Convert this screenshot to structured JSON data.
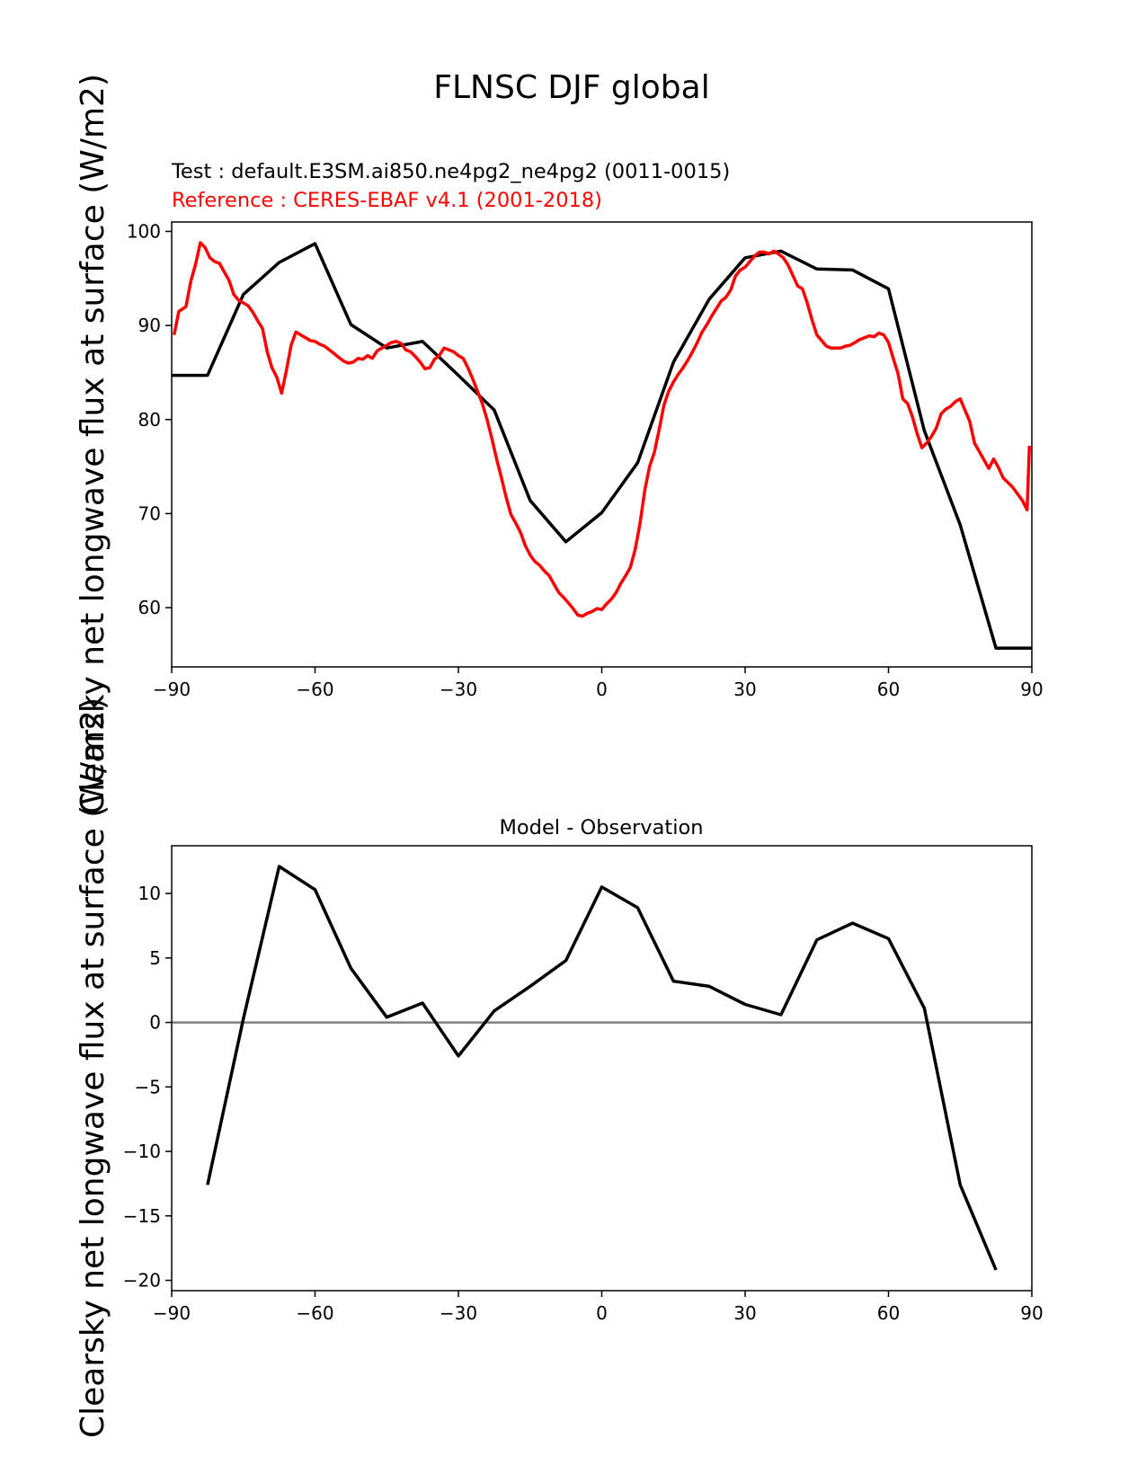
{
  "figure": {
    "title": "FLNSC DJF global",
    "test_label": "Test : default.E3SM.ai850.ne4pg2_ne4pg2 (0011-0015)",
    "reference_label": "Reference : CERES-EBAF v4.1 (2001-2018)",
    "ylabel_top": "Clearsky net longwave flux at surface (W/m2)",
    "ylabel_bottom": "Clearsky net longwave flux at surface (W/m2)"
  },
  "colors": {
    "test": "#000000",
    "reference": "#ff0000",
    "zero_line": "#808080"
  },
  "chart_data": [
    {
      "type": "line",
      "id": "top",
      "title": "",
      "xlim": [
        -90,
        90
      ],
      "ylim": [
        53.7,
        101
      ],
      "xticks": [
        -90,
        -60,
        -30,
        0,
        30,
        60,
        90
      ],
      "xtick_labels": [
        "−90",
        "−60",
        "−30",
        "0",
        "30",
        "60",
        "90"
      ],
      "yticks": [
        60,
        70,
        80,
        90,
        100
      ],
      "ytick_labels": [
        "60",
        "70",
        "80",
        "90",
        "100"
      ],
      "series": [
        {
          "name": "Test",
          "color": "#000000",
          "x": [
            -90,
            -82.5,
            -75,
            -67.5,
            -60,
            -52.5,
            -45,
            -37.5,
            -30,
            -22.5,
            -15,
            -7.5,
            0,
            7.5,
            15,
            22.5,
            30,
            37.5,
            45,
            52.5,
            60,
            67.5,
            75,
            82.5,
            90
          ],
          "y": [
            84.7,
            84.7,
            93.3,
            96.7,
            98.7,
            90.1,
            87.6,
            88.3,
            84.7,
            81.0,
            71.4,
            67.0,
            70.1,
            75.4,
            86.1,
            92.8,
            97.2,
            97.9,
            96.0,
            95.9,
            93.9,
            78.8,
            68.8,
            55.7,
            55.7
          ]
        },
        {
          "name": "Reference",
          "color": "#ff0000",
          "x": [
            -89.5,
            -88.5,
            -87,
            -86,
            -85,
            -84,
            -83,
            -82,
            -81,
            -80,
            -79,
            -78,
            -77,
            -76,
            -75,
            -74,
            -73,
            -72,
            -71,
            -70,
            -69,
            -68,
            -67,
            -66,
            -65,
            -64,
            -63,
            -62,
            -61,
            -60,
            -59,
            -58,
            -57,
            -56,
            -55,
            -54,
            -53,
            -52,
            -51,
            -50,
            -49,
            -48,
            -47,
            -46,
            -45,
            -44,
            -43,
            -42,
            -41,
            -40,
            -39,
            -38,
            -37,
            -36,
            -35,
            -34,
            -33,
            -32,
            -31,
            -30,
            -29,
            -28,
            -27,
            -26,
            -25,
            -24,
            -23,
            -22,
            -21,
            -20,
            -19,
            -18,
            -17,
            -16,
            -15,
            -14,
            -13,
            -12,
            -11,
            -10,
            -9,
            -8,
            -7,
            -6,
            -5,
            -4,
            -3,
            -2,
            -1,
            0,
            1,
            2,
            3,
            4,
            5,
            6,
            7,
            8,
            9,
            10,
            11,
            12,
            13,
            14,
            15,
            16,
            17,
            18,
            19,
            20,
            21,
            22,
            23,
            24,
            25,
            26,
            27,
            28,
            29,
            30,
            31,
            32,
            33,
            34,
            35,
            36,
            37,
            38,
            39,
            40,
            41,
            42,
            43,
            44,
            45,
            46,
            47,
            48,
            49,
            50,
            51,
            52,
            53,
            54,
            55,
            56,
            57,
            58,
            59,
            60,
            61,
            62,
            63,
            64,
            65,
            66,
            67,
            68,
            69,
            70,
            71,
            72,
            73,
            74,
            75,
            76,
            77,
            78,
            79,
            80,
            81,
            82,
            83,
            84,
            85,
            86,
            87,
            88,
            89,
            89.5
          ],
          "y": [
            89,
            91.5,
            92,
            94.7,
            96.5,
            98.8,
            98.3,
            97.2,
            96.8,
            96.6,
            95.7,
            94.8,
            93.3,
            92.7,
            92.4,
            92.1,
            91.4,
            90.5,
            89.7,
            87.2,
            85.5,
            84.5,
            82.8,
            85.2,
            87.9,
            89.3,
            89.0,
            88.7,
            88.4,
            88.3,
            88.0,
            87.8,
            87.4,
            87.0,
            86.6,
            86.2,
            86.0,
            86.1,
            86.5,
            86.4,
            86.8,
            86.5,
            87.3,
            87.6,
            87.9,
            88.2,
            88.3,
            88.1,
            87.4,
            87.2,
            86.7,
            86.1,
            85.4,
            85.5,
            86.4,
            86.8,
            87.6,
            87.4,
            87.2,
            86.8,
            86.5,
            85.5,
            84.3,
            83.0,
            81.7,
            80.0,
            78.0,
            75.8,
            73.8,
            71.7,
            69.9,
            69.0,
            68.0,
            66.6,
            65.6,
            64.9,
            64.5,
            63.9,
            63.4,
            62.5,
            61.6,
            61.1,
            60.5,
            59.9,
            59.2,
            59.1,
            59.4,
            59.6,
            59.9,
            59.8,
            60.4,
            60.9,
            61.6,
            62.6,
            63.4,
            64.3,
            66.2,
            68.9,
            72.5,
            75.0,
            76.5,
            78.9,
            81.5,
            83.0,
            84.0,
            84.8,
            85.5,
            86.3,
            87.2,
            88.2,
            89.3,
            90.1,
            91.0,
            91.8,
            92.6,
            93.0,
            93.8,
            95.3,
            95.9,
            96.2,
            96.8,
            97.4,
            97.8,
            97.8,
            97.6,
            97.9,
            97.6,
            97.2,
            96.4,
            95.3,
            94.2,
            93.9,
            92.4,
            90.6,
            89.0,
            88.4,
            87.8,
            87.6,
            87.6,
            87.6,
            87.8,
            87.9,
            88.2,
            88.5,
            88.7,
            88.9,
            88.8,
            89.2,
            89.0,
            88.2,
            86.5,
            84.9,
            82.2,
            81.7,
            80.3,
            78.5,
            77.0,
            77.5,
            78.2,
            79.1,
            80.6,
            81.1,
            81.4,
            81.9,
            82.2,
            81.0,
            79.8,
            77.5,
            76.6,
            75.7,
            74.8,
            75.8,
            74.9,
            73.8,
            73.3,
            72.8,
            72.1,
            71.4,
            70.4,
            77.2
          ]
        }
      ]
    },
    {
      "type": "line",
      "id": "bottom",
      "title": "Model - Observation",
      "xlim": [
        -90,
        90
      ],
      "ylim": [
        -20.8,
        13.7
      ],
      "xticks": [
        -90,
        -60,
        -30,
        0,
        30,
        60,
        90
      ],
      "xtick_labels": [
        "−90",
        "−60",
        "−30",
        "0",
        "30",
        "60",
        "90"
      ],
      "yticks": [
        -20,
        -15,
        -10,
        -5,
        0,
        5,
        10
      ],
      "ytick_labels": [
        "−20",
        "−15",
        "−10",
        "−5",
        "0",
        "5",
        "10"
      ],
      "zero_line": 0,
      "series": [
        {
          "name": "Model - Observation",
          "color": "#000000",
          "x": [
            -82.5,
            -75,
            -67.5,
            -60,
            -52.5,
            -45,
            -37.5,
            -30,
            -22.5,
            -15,
            -7.5,
            0,
            7.5,
            15,
            22.5,
            30,
            37.5,
            45,
            52.5,
            60,
            67.5,
            75,
            82.5
          ],
          "y": [
            -12.6,
            0.3,
            12.1,
            10.3,
            4.2,
            0.4,
            1.5,
            -2.6,
            0.9,
            2.8,
            4.8,
            10.5,
            8.9,
            3.2,
            2.8,
            1.4,
            0.6,
            6.4,
            7.7,
            6.5,
            1.1,
            -12.6,
            -19.2
          ]
        }
      ]
    }
  ]
}
